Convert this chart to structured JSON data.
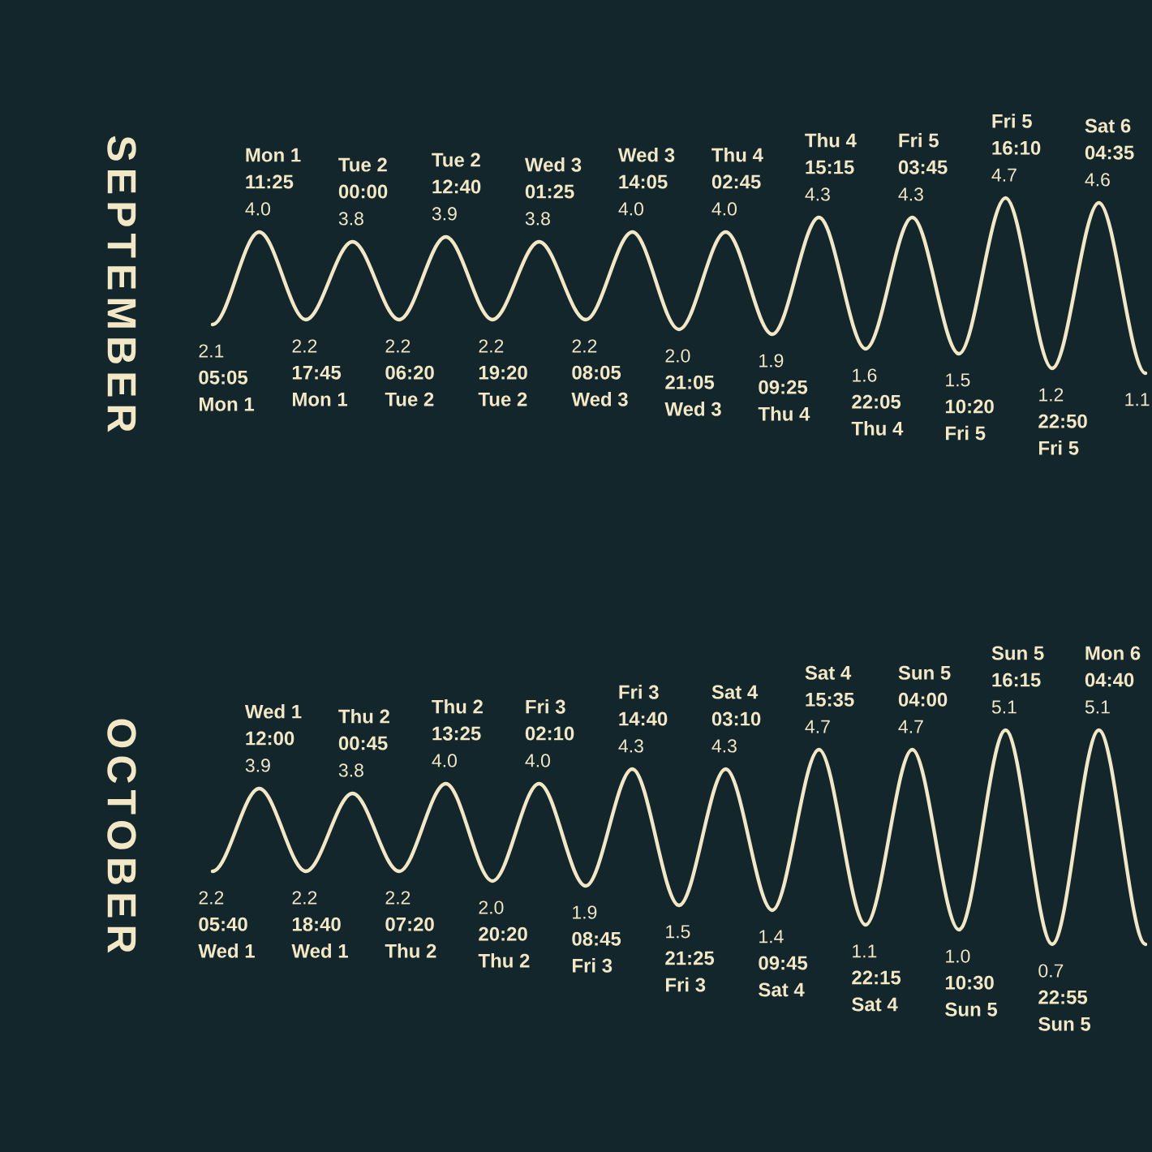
{
  "chart_data": [
    {
      "type": "line",
      "title": "SEPTEMBER",
      "color": "#f3e8c6",
      "marker": "none",
      "categories": [
        null,
        null,
        null,
        null,
        null,
        null,
        null,
        null,
        null,
        null,
        null,
        null,
        null,
        null,
        null,
        null,
        null,
        null,
        null,
        null,
        null
      ],
      "values": [
        2.1,
        4.0,
        2.2,
        3.8,
        2.2,
        3.9,
        2.2,
        3.8,
        2.2,
        4.0,
        2.0,
        4.0,
        1.9,
        4.3,
        1.6,
        4.3,
        1.5,
        4.7,
        1.2,
        4.6,
        1.1
      ],
      "value_labels": [
        "2.1",
        "4.0",
        "2.2",
        "3.8",
        "2.2",
        "3.9",
        "2.2",
        "3.8",
        "2.2",
        "4.0",
        "2.0",
        "4.0",
        "1.9",
        "4.3",
        "1.6",
        "4.3",
        "1.5",
        "4.7",
        "1.2",
        "4.6",
        "1.1"
      ],
      "annotations": [
        "Mon 1",
        "05:05",
        "Mon 1",
        "11:25",
        "Mon 1",
        "17:45",
        "Tue 2",
        "00:00",
        "Tue 2",
        "06:20",
        "Tue 2",
        "12:40",
        "Tue 2",
        "19:20",
        "Wed 3",
        "01:25",
        "Wed 3",
        "08:05",
        "Wed 3",
        "14:05",
        "Wed 3",
        "21:05",
        "Thu 4",
        "02:45",
        "Thu 4",
        "09:25",
        "Thu 4",
        "15:15",
        "Thu 4",
        "22:05",
        "Fri 5",
        "03:45",
        "Fri 5",
        "10:20",
        "Fri 5",
        "16:10",
        "Fri 5",
        "22:50",
        "Sat 6",
        "04:35"
      ]
    },
    {
      "type": "line",
      "title": "OCTOBER",
      "color": "#f3e8c6",
      "marker": "none",
      "categories": [
        null,
        null,
        null,
        null,
        null,
        null,
        null,
        null,
        null,
        null,
        null,
        null,
        null,
        null,
        null,
        null,
        null,
        null,
        null,
        null,
        null
      ],
      "values": [
        2.2,
        3.9,
        2.2,
        3.8,
        2.2,
        4.0,
        2.0,
        4.0,
        1.9,
        4.3,
        1.5,
        4.3,
        1.4,
        4.7,
        1.1,
        4.7,
        1.0,
        5.1,
        0.7,
        5.1,
        0.7
      ],
      "value_labels": [
        "2.2",
        "3.9",
        "2.2",
        "3.8",
        "2.2",
        "4.0",
        "2.0",
        "4.0",
        "1.9",
        "4.3",
        "1.5",
        "4.3",
        "1.4",
        "4.7",
        "1.1",
        "4.7",
        "1.0",
        "5.1",
        "0.7",
        "5.1",
        null
      ],
      "annotations": [
        "Wed 1",
        "05:40",
        "Wed 1",
        "12:00",
        "Wed 1",
        "18:40",
        "Thu 2",
        "00:45",
        "Thu 2",
        "07:20",
        "Thu 2",
        "13:25",
        "Thu 2",
        "20:20",
        "Fri 3",
        "02:10",
        "Fri 3",
        "08:45",
        "Fri 3",
        "14:40",
        "Fri 3",
        "21:25",
        "Sat 4",
        "03:10",
        "Sat 4",
        "09:45",
        "Sat 4",
        "15:35",
        "Sat 4",
        "22:15",
        "Sun 5",
        "04:00",
        "Sun 5",
        "10:30",
        "Sun 5",
        "16:15",
        "Sun 5",
        "22:55",
        "Mon 6",
        "04:40"
      ]
    }
  ]
}
